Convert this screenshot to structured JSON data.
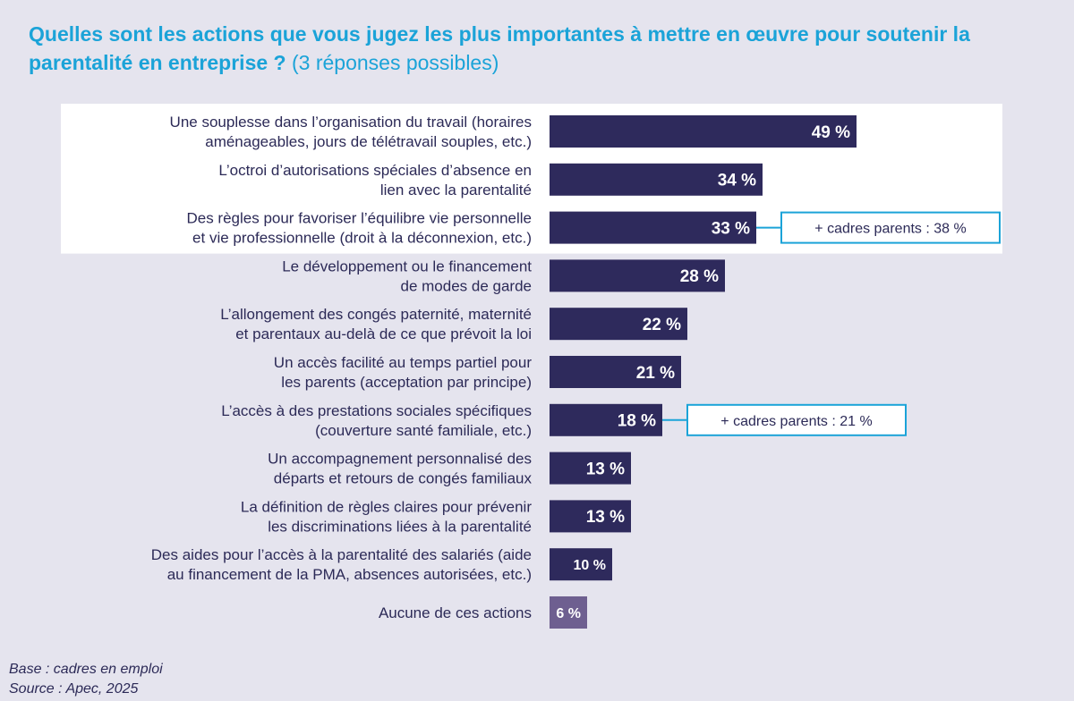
{
  "title": {
    "main": "Quelles sont les actions que vous jugez les plus importantes à mettre en œuvre pour soutenir la parentalité en entreprise ?",
    "sub": "(3 réponses possibles)"
  },
  "colors": {
    "bar": "#2e2a5c",
    "bar_last": "#6e5f90",
    "highlight_bg": "#ffffff",
    "callout_border": "#1ba3d8",
    "text": "#2c2a57"
  },
  "chart_data": {
    "type": "bar",
    "orientation": "horizontal",
    "title": "Quelles sont les actions que vous jugez les plus importantes à mettre en œuvre pour soutenir la parentalité en entreprise ? (3 réponses possibles)",
    "xlabel": "",
    "ylabel": "",
    "xlim": [
      0,
      49
    ],
    "unit": "%",
    "categories": [
      [
        "Une souplesse dans l’organisation du travail (horaires",
        "aménageables, jours de télétravail souples, etc.)"
      ],
      [
        "L’octroi d’autorisations spéciales d’absence en",
        "lien avec la parentalité"
      ],
      [
        "Des règles pour favoriser l’équilibre vie personnelle",
        "et vie professionnelle (droit à la déconnexion, etc.)"
      ],
      [
        "Le développement ou le financement",
        "de modes de garde"
      ],
      [
        "L’allongement des congés paternité, maternité",
        "et parentaux au-delà de ce que prévoit la loi"
      ],
      [
        "Un accès facilité au temps partiel pour",
        "les parents (acceptation par principe)"
      ],
      [
        "L’accès à des prestations sociales spécifiques",
        "(couverture santé familiale, etc.)"
      ],
      [
        "Un accompagnement personnalisé des",
        "départs et retours de congés familiaux"
      ],
      [
        "La définition de règles claires pour prévenir",
        "les discriminations liées à la parentalité"
      ],
      [
        "Des aides pour l’accès à la parentalité des salariés (aide",
        "au financement de la PMA, absences autorisées, etc.)"
      ],
      [
        "Aucune de ces actions"
      ]
    ],
    "values": [
      49,
      34,
      33,
      28,
      22,
      21,
      18,
      13,
      13,
      10,
      6
    ],
    "value_labels": [
      "49 %",
      "34 %",
      "33 %",
      "28 %",
      "22 %",
      "21 %",
      "18 %",
      "13 %",
      "13 %",
      "10 %",
      "6 %"
    ],
    "highlighted_top": 3,
    "annotations": [
      {
        "category_index": 2,
        "text": "+ cadres parents : 38 %"
      },
      {
        "category_index": 6,
        "text": "+ cadres parents : 21 %"
      }
    ]
  },
  "footnote": {
    "base": "Base : cadres en emploi",
    "source": "Source : Apec, 2025"
  }
}
